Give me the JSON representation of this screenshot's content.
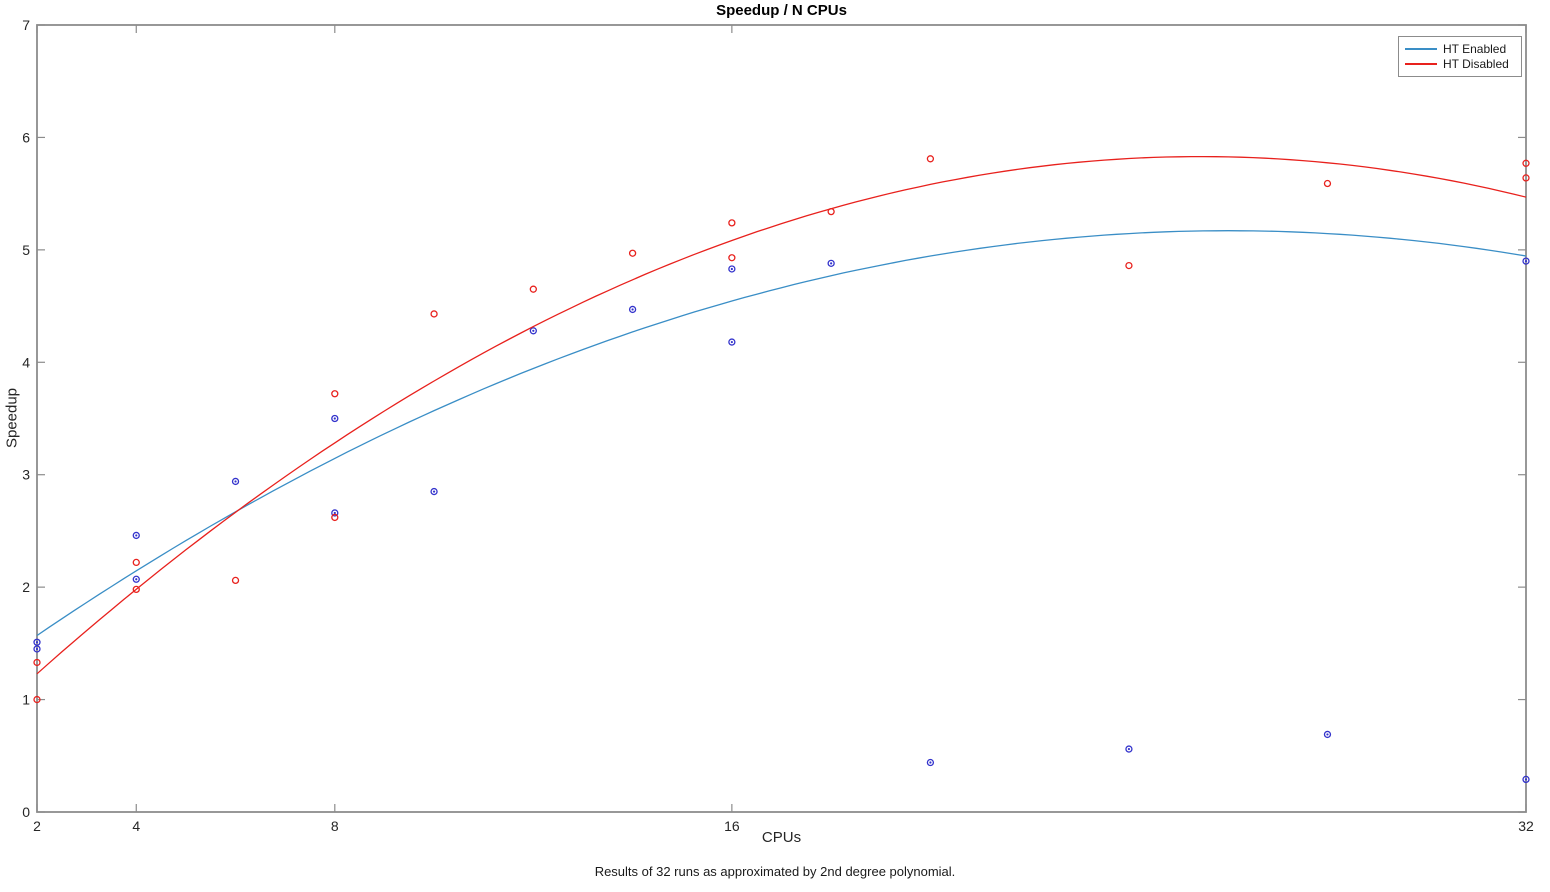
{
  "title": "Speedup / N CPUs",
  "caption": "Results of 32 runs as approximated by 2nd degree polynomial.",
  "legend": {
    "position": "top-right"
  },
  "colors": {
    "axis": "#8c8c8c",
    "tick_label": "#262626",
    "background": "#ffffff"
  },
  "chart_data": {
    "type": "scatter",
    "title": "Speedup / N CPUs",
    "xlabel": "CPUs",
    "ylabel": "Speedup",
    "xlim": [
      2,
      32
    ],
    "ylim": [
      0,
      7
    ],
    "x_ticks": [
      2,
      4,
      8,
      16,
      32
    ],
    "y_ticks": [
      0,
      1,
      2,
      3,
      4,
      5,
      6,
      7
    ],
    "grid": false,
    "legend_position": "top-right",
    "series": [
      {
        "name": "HT Enabled",
        "marker": "circle",
        "marker_color": "#3333cc",
        "line_color": "#3a8ec6",
        "points": [
          [
            2,
            1.51
          ],
          [
            2,
            1.45
          ],
          [
            4,
            2.46
          ],
          [
            4,
            2.07
          ],
          [
            6,
            2.94
          ],
          [
            8,
            3.5
          ],
          [
            8,
            2.66
          ],
          [
            10,
            2.85
          ],
          [
            12,
            4.28
          ],
          [
            14,
            4.47
          ],
          [
            16,
            4.83
          ],
          [
            16,
            4.18
          ],
          [
            18,
            4.88
          ],
          [
            20,
            0.44
          ],
          [
            24,
            0.56
          ],
          [
            28,
            0.69
          ],
          [
            32,
            4.9
          ],
          [
            32,
            0.29
          ]
        ],
        "fit": "2nd degree polynomial",
        "fit_poly_coeffs": [
          0.945,
          0.325,
          -0.00625
        ]
      },
      {
        "name": "HT Disabled",
        "marker": "circle",
        "marker_color": "#e8211d",
        "line_color": "#e8211d",
        "points": [
          [
            2,
            1.33
          ],
          [
            2,
            1.0
          ],
          [
            4,
            2.22
          ],
          [
            4,
            1.98
          ],
          [
            6,
            2.06
          ],
          [
            8,
            3.72
          ],
          [
            8,
            2.62
          ],
          [
            10,
            4.43
          ],
          [
            12,
            4.65
          ],
          [
            14,
            4.97
          ],
          [
            16,
            5.24
          ],
          [
            16,
            4.93
          ],
          [
            18,
            5.34
          ],
          [
            20,
            5.81
          ],
          [
            24,
            4.86
          ],
          [
            28,
            5.59
          ],
          [
            32,
            5.77
          ],
          [
            32,
            5.64
          ]
        ],
        "fit": "2nd degree polynomial",
        "fit_poly_coeffs": [
          0.4111,
          0.426,
          -0.008373
        ]
      }
    ]
  }
}
